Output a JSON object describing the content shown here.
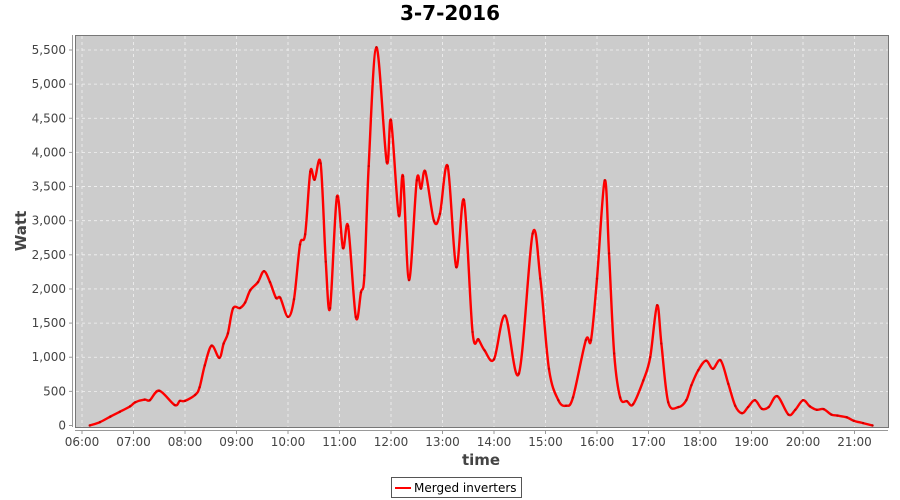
{
  "chart_data": {
    "type": "line",
    "title": "3-7-2016",
    "xlabel": "time",
    "ylabel": "Watt",
    "xlim": [
      "05:54",
      "22:00"
    ],
    "ylim": [
      0,
      5750
    ],
    "x_ticks": [
      "06:00",
      "07:00",
      "08:00",
      "09:00",
      "10:00",
      "11:00",
      "12:00",
      "13:00",
      "14:00",
      "15:00",
      "16:00",
      "17:00",
      "18:00",
      "19:00",
      "20:00",
      "21:00"
    ],
    "y_ticks": [
      "0",
      "500",
      "1,000",
      "1,500",
      "2,000",
      "2,500",
      "3,000",
      "3,500",
      "4,000",
      "4,500",
      "5,000",
      "5,500"
    ],
    "grid": true,
    "legend_position": "bottom",
    "plot_background": "#cccccc",
    "series": [
      {
        "name": "Merged inverters",
        "color": "#ff0000",
        "x": [
          "06:09",
          "06:21",
          "06:33",
          "06:44",
          "06:56",
          "07:02",
          "07:13",
          "07:19",
          "07:30",
          "07:48",
          "07:54",
          "08:00",
          "08:12",
          "08:17",
          "08:23",
          "08:31",
          "08:40",
          "08:45",
          "08:50",
          "08:56",
          "09:04",
          "09:10",
          "09:16",
          "09:25",
          "09:32",
          "09:39",
          "09:46",
          "09:51",
          "10:00",
          "10:07",
          "10:14",
          "10:20",
          "10:26",
          "10:31",
          "10:38",
          "10:44",
          "10:49",
          "10:57",
          "11:04",
          "11:10",
          "11:19",
          "11:25",
          "11:29",
          "11:34",
          "11:43",
          "11:55",
          "12:00",
          "12:09",
          "12:14",
          "12:21",
          "12:30",
          "12:35",
          "12:40",
          "12:50",
          "12:57",
          "13:06",
          "13:16",
          "13:25",
          "13:35",
          "13:42",
          "13:49",
          "14:00",
          "14:13",
          "14:29",
          "14:45",
          "14:54",
          "15:04",
          "15:15",
          "15:24",
          "15:32",
          "15:47",
          "15:53",
          "16:00",
          "16:09",
          "16:14",
          "16:20",
          "16:27",
          "16:35",
          "16:42",
          "16:54",
          "17:02",
          "17:10",
          "17:15",
          "17:23",
          "17:35",
          "17:44",
          "17:50",
          "17:58",
          "18:07",
          "18:15",
          "18:24",
          "18:33",
          "18:41",
          "18:49",
          "18:56",
          "19:04",
          "19:12",
          "19:20",
          "19:30",
          "19:43",
          "19:51",
          "20:00",
          "20:08",
          "20:16",
          "20:24",
          "20:33",
          "20:40",
          "20:51",
          "20:59",
          "21:10",
          "21:21"
        ],
        "y": [
          0,
          50,
          130,
          200,
          280,
          340,
          380,
          370,
          510,
          300,
          360,
          360,
          450,
          560,
          880,
          1170,
          990,
          1200,
          1350,
          1715,
          1720,
          1800,
          1980,
          2100,
          2260,
          2100,
          1870,
          1870,
          1590,
          1850,
          2650,
          2800,
          3720,
          3600,
          3840,
          2400,
          1720,
          3350,
          2600,
          2920,
          1590,
          1950,
          2200,
          3800,
          5540,
          3860,
          4470,
          3080,
          3650,
          2130,
          3590,
          3470,
          3720,
          3000,
          3100,
          3800,
          2320,
          3300,
          1370,
          1260,
          1100,
          970,
          1610,
          760,
          2810,
          2150,
          830,
          370,
          290,
          410,
          1250,
          1250,
          2150,
          3590,
          2520,
          1055,
          410,
          355,
          310,
          660,
          1000,
          1760,
          1200,
          340,
          270,
          370,
          590,
          810,
          950,
          830,
          955,
          610,
          290,
          180,
          270,
          370,
          245,
          270,
          430,
          160,
          230,
          370,
          280,
          230,
          240,
          160,
          145,
          120,
          70,
          35,
          0
        ]
      }
    ]
  }
}
